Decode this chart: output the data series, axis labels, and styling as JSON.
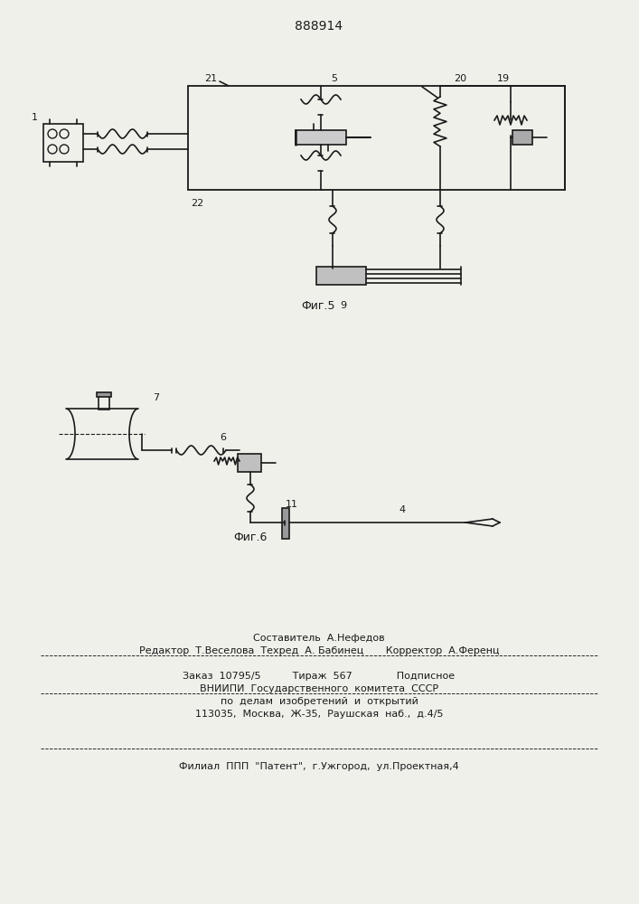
{
  "patent_number": "888914",
  "fig5_label": "Фиг.5",
  "fig6_label": "Фиг.6",
  "bg_color": "#f0f0eb",
  "line_color": "#1a1a1a"
}
